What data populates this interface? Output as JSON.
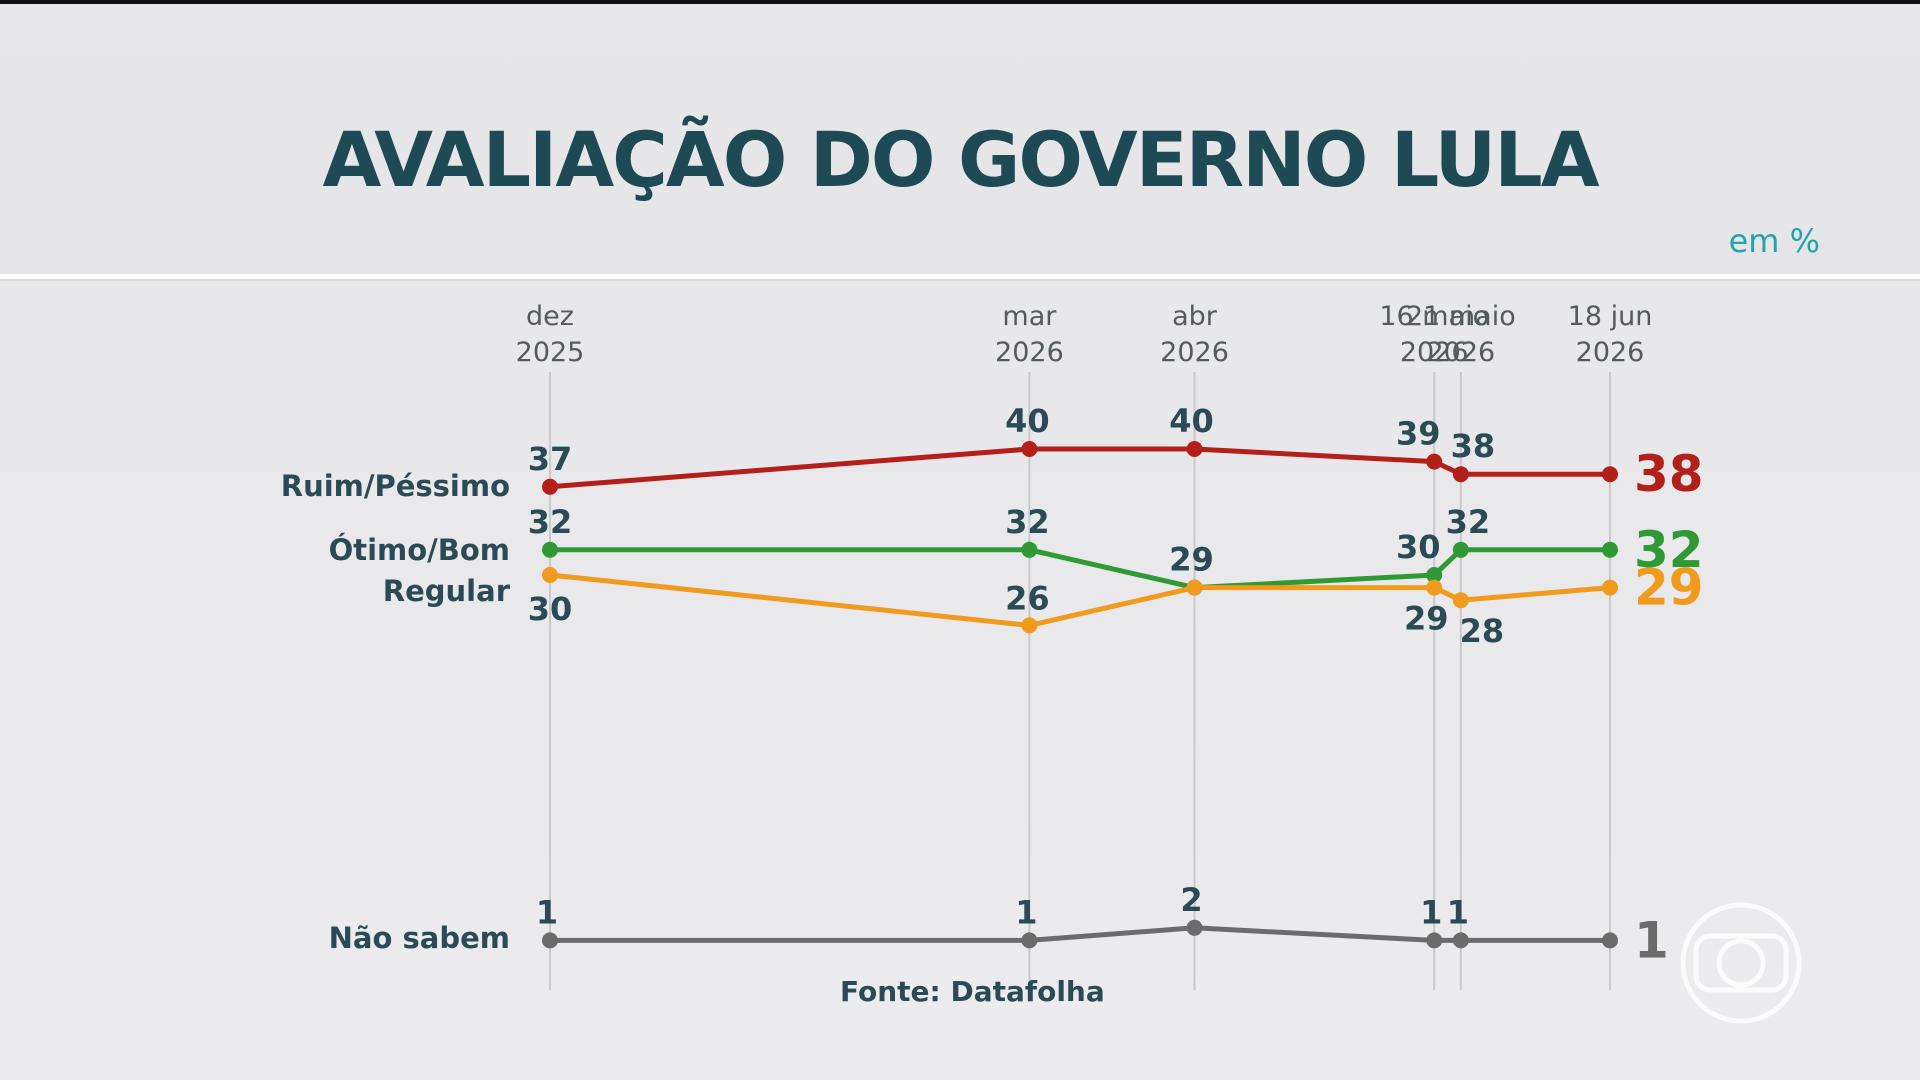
{
  "title": "AVALIAÇÃO DO GOVERNO LULA",
  "unit_note": "em %",
  "source": "Fonte: Datafolha",
  "logo_icon": "globo-logo-icon",
  "chart_data": {
    "type": "line",
    "title": "AVALIAÇÃO DO GOVERNO LULA",
    "categories": [
      [
        "dez",
        "2025"
      ],
      [
        "mar",
        "2026"
      ],
      [
        "abr",
        "2026"
      ],
      [
        "16 maio",
        "2026"
      ],
      [
        "21 maio",
        "2026"
      ],
      [
        "18 jun",
        "2026"
      ]
    ],
    "x": [
      "2025-12-01",
      "2026-03-01",
      "2026-04-01",
      "2026-05-16",
      "2026-05-21",
      "2026-06-18"
    ],
    "ylim": [
      0,
      45
    ],
    "grid": "vertical lines at each survey date",
    "series": [
      {
        "name": "Ruim/Péssimo",
        "color": "#b3201a",
        "values": [
          37,
          40,
          40,
          39,
          38,
          38
        ],
        "final_label": "38"
      },
      {
        "name": "Ótimo/Bom",
        "color": "#2f9a35",
        "values": [
          32,
          32,
          29,
          30,
          32,
          32
        ],
        "final_label": "32"
      },
      {
        "name": "Regular",
        "color": "#f09a1e",
        "values": [
          30,
          26,
          29,
          29,
          28,
          29
        ],
        "final_label": "29"
      },
      {
        "name": "Não sabem",
        "color": "#6b6b6b",
        "values": [
          1,
          1,
          2,
          1,
          1,
          1
        ],
        "final_label": "1"
      }
    ]
  }
}
